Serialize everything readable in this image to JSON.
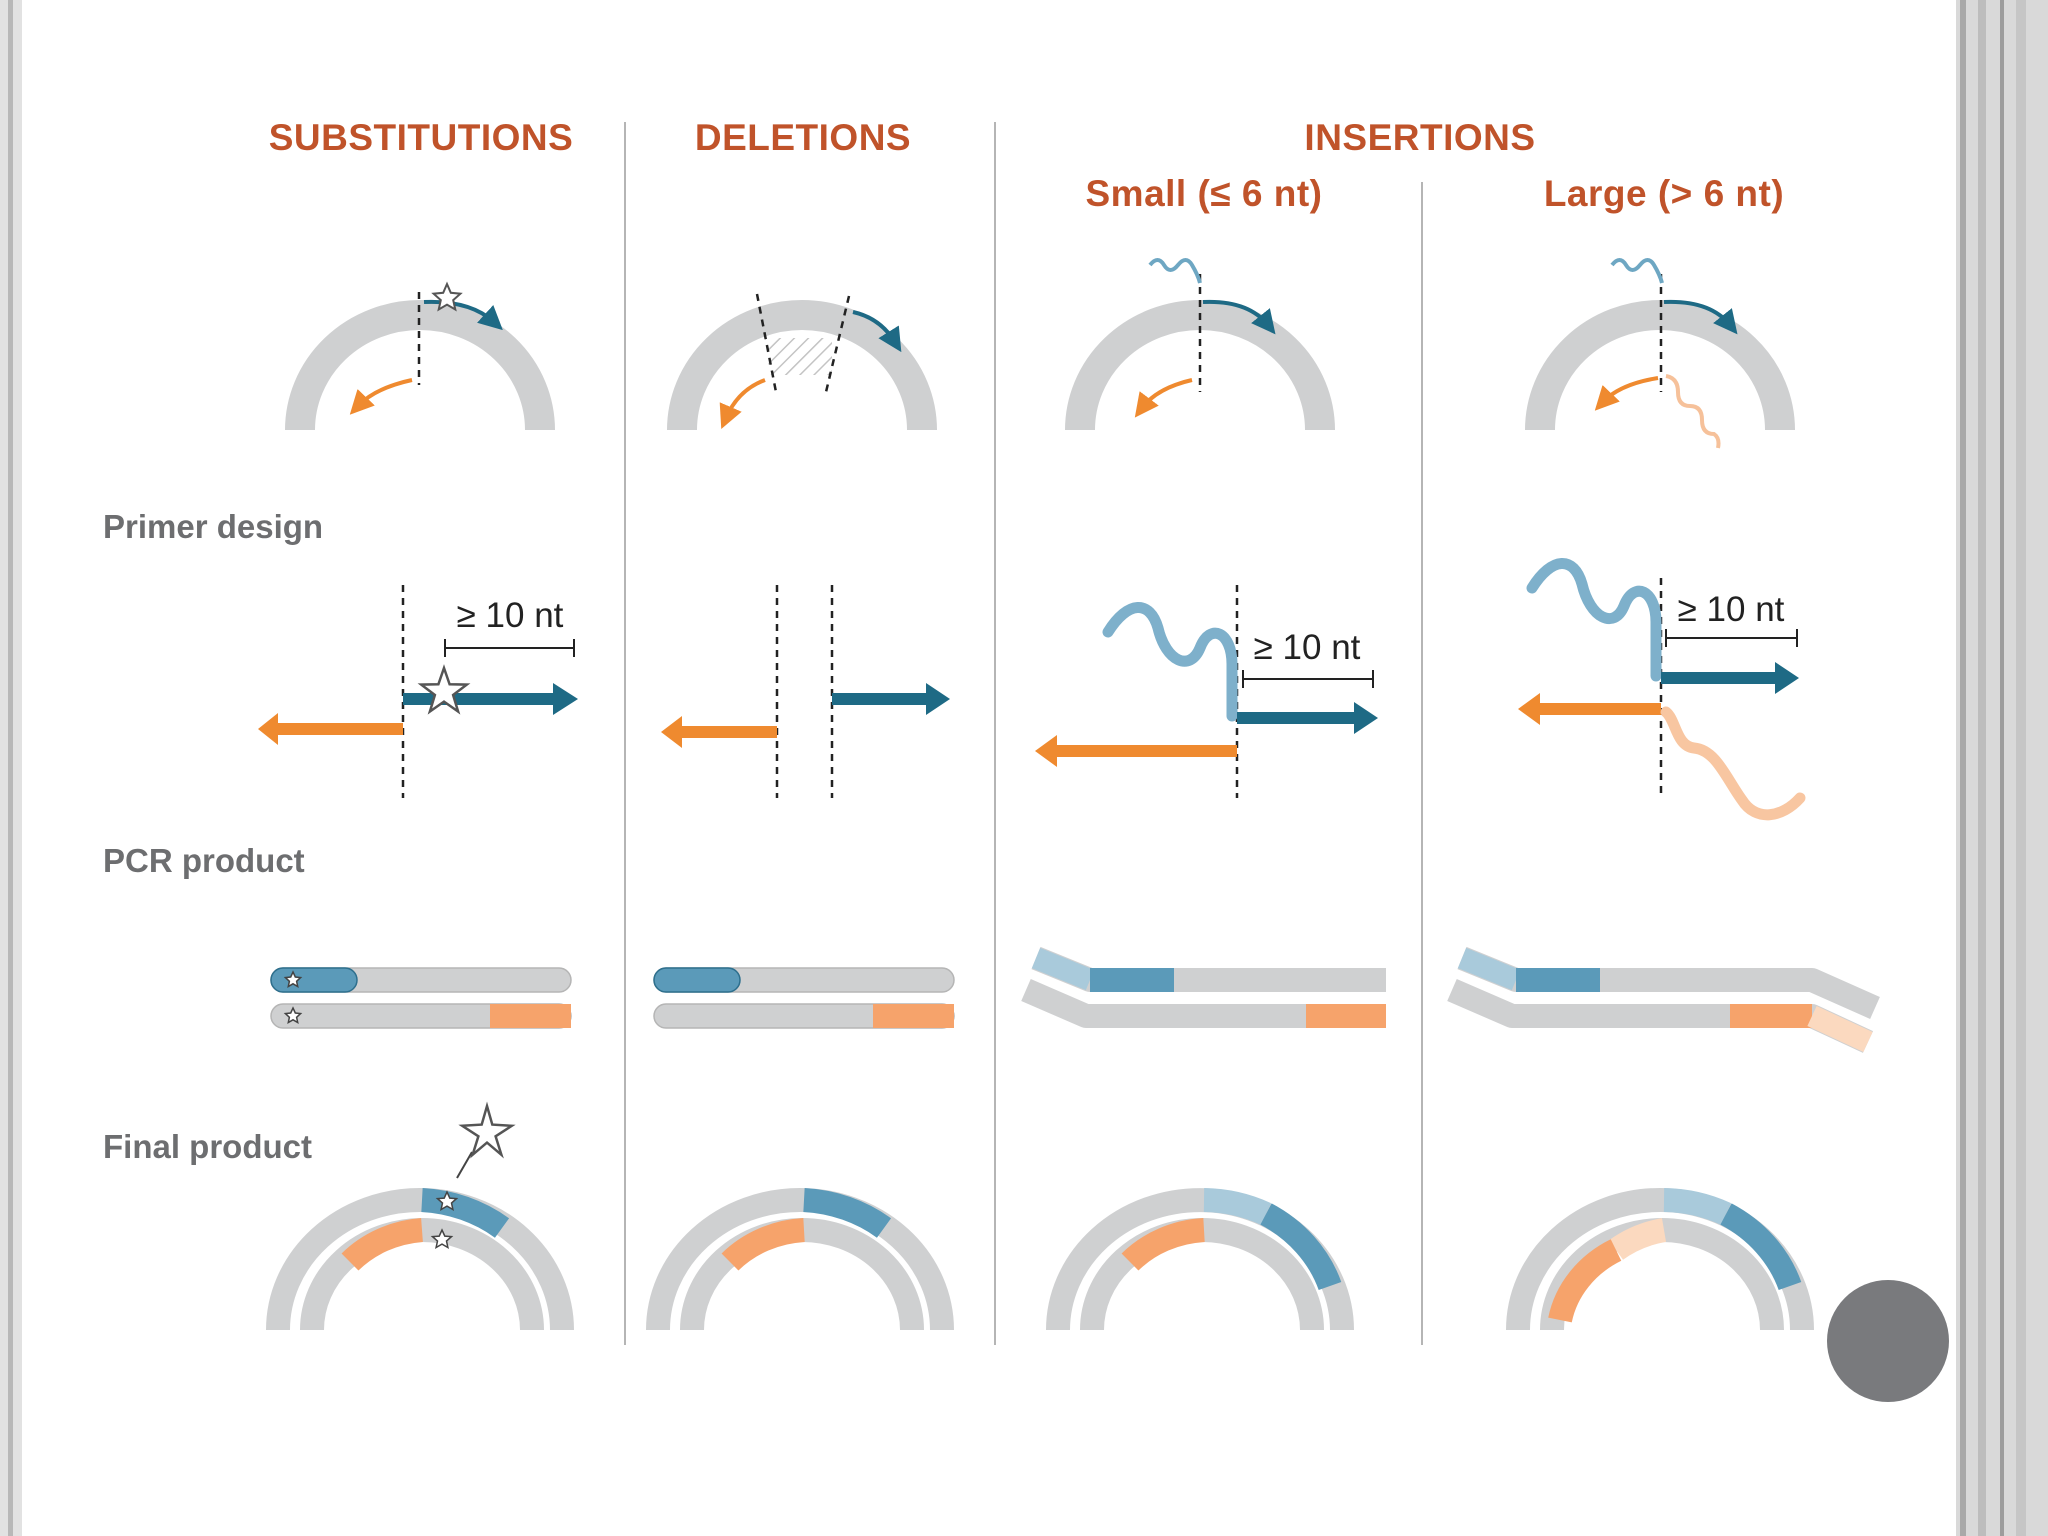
{
  "headings": {
    "substitutions": "SUBSTITUTIONS",
    "deletions": "DELETIONS",
    "insertions": "INSERTIONS",
    "small": "Small (≤ 6 nt)",
    "large": "Large (> 6 nt)"
  },
  "row_labels": {
    "primer_design": "Primer design",
    "pcr_product": "PCR product",
    "final_product": "Final product"
  },
  "overlap_label": "≥ 10 nt",
  "colors": {
    "heading": "#c0532a",
    "row_label": "#6d6e70",
    "forward_primer": "#1e6a85",
    "forward_primer_light": "#5b9ab9",
    "reverse_primer": "#ef8a2f",
    "reverse_primer_light": "#f6b07a",
    "plasmid": "#cfd0d1",
    "nav_dot": "#797a7d"
  },
  "icons": {
    "mutation": "star-icon",
    "navigation": "circle-icon"
  }
}
